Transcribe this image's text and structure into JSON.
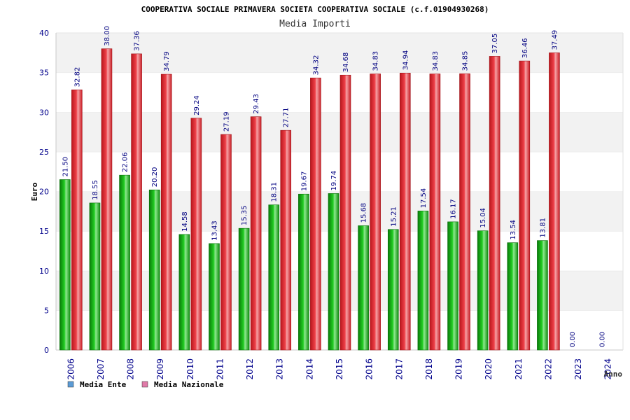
{
  "chart_data": {
    "type": "bar",
    "title": "COOPERATIVA SOCIALE PRIMAVERA SOCIETA COOPERATIVA SOCIALE (c.f.01904930268)",
    "subtitle": "Media Importi",
    "xlabel": "Anno",
    "ylabel": "Euro",
    "ylim": [
      0,
      40
    ],
    "yticks": [
      "0",
      "5",
      "10",
      "15",
      "20",
      "25",
      "30",
      "35",
      "40"
    ],
    "grid": "horizontal bands",
    "legend_position": "bottom-left",
    "categories": [
      "2006",
      "2007",
      "2008",
      "2009",
      "2010",
      "2011",
      "2012",
      "2013",
      "2014",
      "2015",
      "2016",
      "2017",
      "2018",
      "2019",
      "2020",
      "2021",
      "2022",
      "2023",
      "2024"
    ],
    "series": [
      {
        "name": "Media Ente",
        "color": "#1fb81f",
        "legend_color": "#5b9bd5",
        "values": [
          21.5,
          18.55,
          22.06,
          20.2,
          14.58,
          13.43,
          15.35,
          18.31,
          19.67,
          19.74,
          15.68,
          15.21,
          17.54,
          16.17,
          15.04,
          13.54,
          13.81,
          0.0,
          0.0
        ],
        "labels": [
          "21.50",
          "18.55",
          "22.06",
          "20.20",
          "14.58",
          "13.43",
          "15.35",
          "18.31",
          "19.67",
          "19.74",
          "15.68",
          "15.21",
          "17.54",
          "16.17",
          "15.04",
          "13.54",
          "13.81",
          "0.00",
          "0.00"
        ]
      },
      {
        "name": "Media Nazionale",
        "color": "#e8333a",
        "legend_color": "#e07aa8",
        "values": [
          32.82,
          38.0,
          37.36,
          34.79,
          29.24,
          27.19,
          29.43,
          27.71,
          34.32,
          34.68,
          34.83,
          34.94,
          34.83,
          34.85,
          37.05,
          36.46,
          37.49,
          null,
          null
        ],
        "labels": [
          "32.82",
          "38.00",
          "37.36",
          "34.79",
          "29.24",
          "27.19",
          "29.43",
          "27.71",
          "34.32",
          "34.68",
          "34.83",
          "34.94",
          "34.83",
          "34.85",
          "37.05",
          "36.46",
          "37.49",
          null,
          null
        ]
      }
    ]
  }
}
